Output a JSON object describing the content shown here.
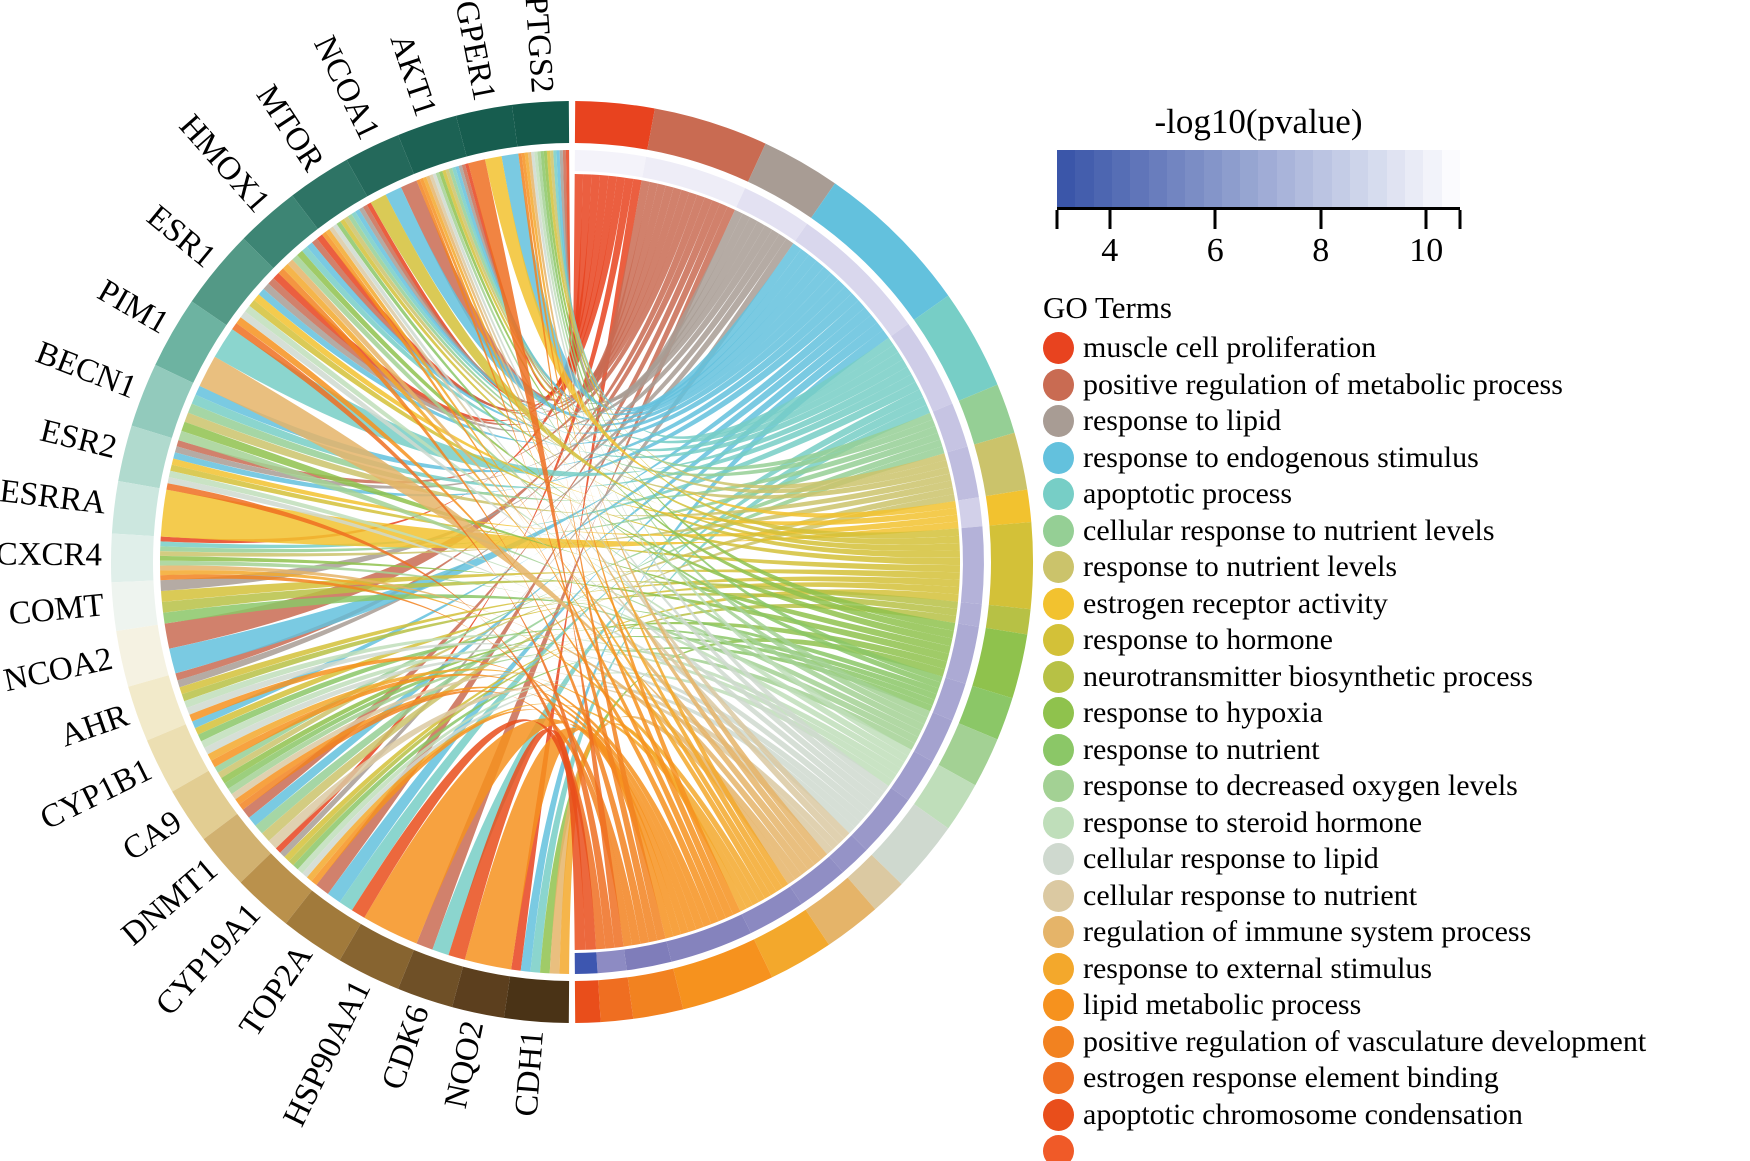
{
  "colorbar": {
    "title": "-log10(pvalue)",
    "domain": [
      3.0,
      10.64
    ],
    "ticks": [
      4,
      6,
      8,
      10
    ],
    "color_start": "#3B56A9",
    "color_end": "#FBFBFE",
    "steps": 22
  },
  "legend_title": "GO Terms",
  "legend_truncated_color": "#F05A28",
  "chart_data": {
    "type": "chord",
    "description_left_axis": "gene arcs (left half of circle)",
    "description_right_axis": "GO term arcs (right half of circle) with inner -log10(pvalue) ring",
    "genes": [
      {
        "name": "PTGS2",
        "weight": 7,
        "color": "#14594B"
      },
      {
        "name": "GPER1",
        "weight": 7,
        "color": "#175D4F"
      },
      {
        "name": "AKT1",
        "weight": 7.5,
        "color": "#1C6254"
      },
      {
        "name": "NCOA1",
        "weight": 7,
        "color": "#24695B"
      },
      {
        "name": "MTOR",
        "weight": 8,
        "color": "#2E7465"
      },
      {
        "name": "HMOX1",
        "weight": 8,
        "color": "#3D8574"
      },
      {
        "name": "ESR1",
        "weight": 10,
        "color": "#539986"
      },
      {
        "name": "PIM1",
        "weight": 9,
        "color": "#6DB3A1"
      },
      {
        "name": "BECN1",
        "weight": 8,
        "color": "#92CABC"
      },
      {
        "name": "ESR2",
        "weight": 7,
        "color": "#B0DACE"
      },
      {
        "name": "ESRRA",
        "weight": 6.5,
        "color": "#CCE7DF"
      },
      {
        "name": "CXCR4",
        "weight": 6,
        "color": "#E0EFEA"
      },
      {
        "name": "COMT",
        "weight": 6,
        "color": "#EEF4EF"
      },
      {
        "name": "NCOA2",
        "weight": 7,
        "color": "#F5F2E2"
      },
      {
        "name": "AHR",
        "weight": 7,
        "color": "#F2EACA"
      },
      {
        "name": "CYP1B1",
        "weight": 7,
        "color": "#ECDFB2"
      },
      {
        "name": "CA9",
        "weight": 7,
        "color": "#E2CD92"
      },
      {
        "name": "DNMT1",
        "weight": 7,
        "color": "#D1B170"
      },
      {
        "name": "CYP19A1",
        "weight": 7.5,
        "color": "#BA914C"
      },
      {
        "name": "TOP2A",
        "weight": 8,
        "color": "#A17A3B"
      },
      {
        "name": "HSP90AA1",
        "weight": 8,
        "color": "#876430"
      },
      {
        "name": "CDK6",
        "weight": 7,
        "color": "#6F5027"
      },
      {
        "name": "NQO2",
        "weight": 6.5,
        "color": "#5C3F1E"
      },
      {
        "name": "CDH1",
        "weight": 8,
        "color": "#4A3316"
      }
    ],
    "go_terms": [
      {
        "label": "muscle cell proliferation",
        "color": "#E8431F",
        "ring": "#F4F3FA",
        "neg_log10_pvalue": 10.5,
        "weight": 11,
        "genes": [
          "PTGS2",
          "AKT1",
          "MTOR",
          "HMOX1",
          "ESR1",
          "CXCR4",
          "CYP19A1",
          "CDH1"
        ]
      },
      {
        "label": "positive regulation of metabolic process",
        "color": "#C96B52",
        "ring": "#EEEDF7",
        "neg_log10_pvalue": 10.2,
        "weight": 16,
        "genes": [
          "PTGS2",
          "AKT1",
          "NCOA1",
          "MTOR",
          "HMOX1",
          "ESR1",
          "ESR2",
          "NCOA2",
          "AHR",
          "DNMT1",
          "TOP2A",
          "CDK6"
        ]
      },
      {
        "label": "response to lipid",
        "color": "#A89C94",
        "ring": "#E3E1F2",
        "neg_log10_pvalue": 9.4,
        "weight": 11,
        "genes": [
          "PTGS2",
          "AKT1",
          "MTOR",
          "ESR1",
          "ESR2",
          "COMT",
          "AHR",
          "CYP19A1"
        ]
      },
      {
        "label": "response to endogenous stimulus",
        "color": "#63C1DD",
        "ring": "#D9D7ED",
        "neg_log10_pvalue": 8.8,
        "weight": 22,
        "genes": [
          "PTGS2",
          "GPER1",
          "AKT1",
          "NCOA1",
          "MTOR",
          "HMOX1",
          "ESR1",
          "BECN1",
          "ESR2",
          "NCOA2",
          "CYP1B1",
          "DNMT1",
          "TOP2A",
          "CDH1"
        ]
      },
      {
        "label": "apoptotic process",
        "color": "#77CEC6",
        "ring": "#CFCDE8",
        "neg_log10_pvalue": 8.2,
        "weight": 14,
        "genes": [
          "PTGS2",
          "AKT1",
          "MTOR",
          "HMOX1",
          "PIM1",
          "BECN1",
          "CXCR4",
          "TOP2A",
          "CDK6",
          "CDH1"
        ]
      },
      {
        "label": "cellular response to nutrient levels",
        "color": "#95CF95",
        "ring": "#C6C4E3",
        "neg_log10_pvalue": 7.8,
        "weight": 7,
        "genes": [
          "AKT1",
          "MTOR",
          "BECN1",
          "CXCR4",
          "CA9",
          "DNMT1"
        ]
      },
      {
        "label": "response to nutrient levels",
        "color": "#CBC36B",
        "ring": "#BFBDDF",
        "neg_log10_pvalue": 7.4,
        "weight": 8,
        "genes": [
          "PTGS2",
          "AKT1",
          "MTOR",
          "BECN1",
          "CXCR4",
          "CA9",
          "DNMT1"
        ]
      },
      {
        "label": "estrogen receptor activity",
        "color": "#F2C22F",
        "ring": "#D2D0E9",
        "neg_log10_pvalue": 8.0,
        "weight": 4.5,
        "genes": [
          "GPER1",
          "ESR1",
          "ESR2",
          "ESRRA"
        ]
      },
      {
        "label": "response to hormone",
        "color": "#D3C138",
        "ring": "#B4B2D9",
        "neg_log10_pvalue": 6.8,
        "weight": 12,
        "genes": [
          "PTGS2",
          "AKT1",
          "NCOA1",
          "MTOR",
          "ESR1",
          "ESR2",
          "COMT",
          "AHR",
          "CYP1B1",
          "CYP19A1"
        ]
      },
      {
        "label": "neurotransmitter biosynthetic process",
        "color": "#B7C145",
        "ring": "#B1AFD7",
        "neg_log10_pvalue": 6.7,
        "weight": 3.5,
        "genes": [
          "COMT",
          "AHR",
          "CYP19A1"
        ]
      },
      {
        "label": "response to hypoxia",
        "color": "#8FC24D",
        "ring": "#ACAAD4",
        "neg_log10_pvalue": 6.4,
        "weight": 9,
        "genes": [
          "PTGS2",
          "AKT1",
          "HMOX1",
          "BECN1",
          "CXCR4",
          "CA9",
          "CDH1"
        ]
      },
      {
        "label": "response to nutrient",
        "color": "#8BC767",
        "ring": "#A8A6D2",
        "neg_log10_pvalue": 6.3,
        "weight": 6,
        "genes": [
          "PTGS2",
          "MTOR",
          "COMT",
          "CYP1B1",
          "CA9",
          "CYP19A1"
        ]
      },
      {
        "label": "response to decreased oxygen levels",
        "color": "#A3D194",
        "ring": "#A4A2CF",
        "neg_log10_pvalue": 6.1,
        "weight": 7,
        "genes": [
          "PTGS2",
          "AKT1",
          "HMOX1",
          "BECN1",
          "CXCR4",
          "CA9"
        ]
      },
      {
        "label": "response to steroid hormone",
        "color": "#BFDEBA",
        "ring": "#A09ECD",
        "neg_log10_pvalue": 5.9,
        "weight": 7,
        "genes": [
          "PTGS2",
          "ESR1",
          "ESR2",
          "AHR",
          "CYP1B1",
          "CYP19A1"
        ]
      },
      {
        "label": "cellular response to lipid",
        "color": "#CFD9CF",
        "ring": "#9A98C9",
        "neg_log10_pvalue": 5.7,
        "weight": 10,
        "genes": [
          "PTGS2",
          "AKT1",
          "MTOR",
          "ESR1",
          "ESR2",
          "AHR",
          "CYP1B1",
          "CYP19A1"
        ]
      },
      {
        "label": "cellular response to nutrient",
        "color": "#DBC9A2",
        "ring": "#9593C7",
        "neg_log10_pvalue": 5.6,
        "weight": 5,
        "genes": [
          "AKT1",
          "MTOR",
          "CA9",
          "DNMT1"
        ]
      },
      {
        "label": "regulation of immune system process",
        "color": "#E5B469",
        "ring": "#908EC4",
        "neg_log10_pvalue": 5.4,
        "weight": 8,
        "genes": [
          "PTGS2",
          "AKT1",
          "HMOX1",
          "PIM1",
          "CXCR4",
          "CDH1"
        ]
      },
      {
        "label": "response to external stimulus",
        "color": "#F3A82C",
        "ring": "#8B89C1",
        "neg_log10_pvalue": 5.2,
        "weight": 9,
        "genes": [
          "PTGS2",
          "AKT1",
          "MTOR",
          "HMOX1",
          "CXCR4",
          "CYP1B1",
          "CYP19A1",
          "CDH1"
        ]
      },
      {
        "label": "lipid metabolic process",
        "color": "#F6921E",
        "ring": "#8583BD",
        "neg_log10_pvalue": 5.0,
        "weight": 13,
        "genes": [
          "PTGS2",
          "AKT1",
          "MTOR",
          "ESR1",
          "AHR",
          "CYP1B1",
          "CA9",
          "CYP19A1",
          "HSP90AA1",
          "NQO2"
        ]
      },
      {
        "label": "positive regulation of vasculature development",
        "color": "#F28220",
        "ring": "#7F7DBA",
        "neg_log10_pvalue": 4.7,
        "weight": 7,
        "genes": [
          "PTGS2",
          "AKT1",
          "HMOX1",
          "CXCR4",
          "CA9"
        ]
      },
      {
        "label": "estrogen response element binding",
        "color": "#EF6E21",
        "ring": "#8D8BC3",
        "neg_log10_pvalue": 5.5,
        "weight": 4.5,
        "genes": [
          "GPER1",
          "ESR1",
          "ESR2"
        ]
      },
      {
        "label": "apoptotic chromosome condensation",
        "color": "#E94E1B",
        "ring": "#3D56B0",
        "neg_log10_pvalue": 3.2,
        "weight": 3.5,
        "genes": [
          "TOP2A",
          "CDK6"
        ]
      }
    ]
  }
}
